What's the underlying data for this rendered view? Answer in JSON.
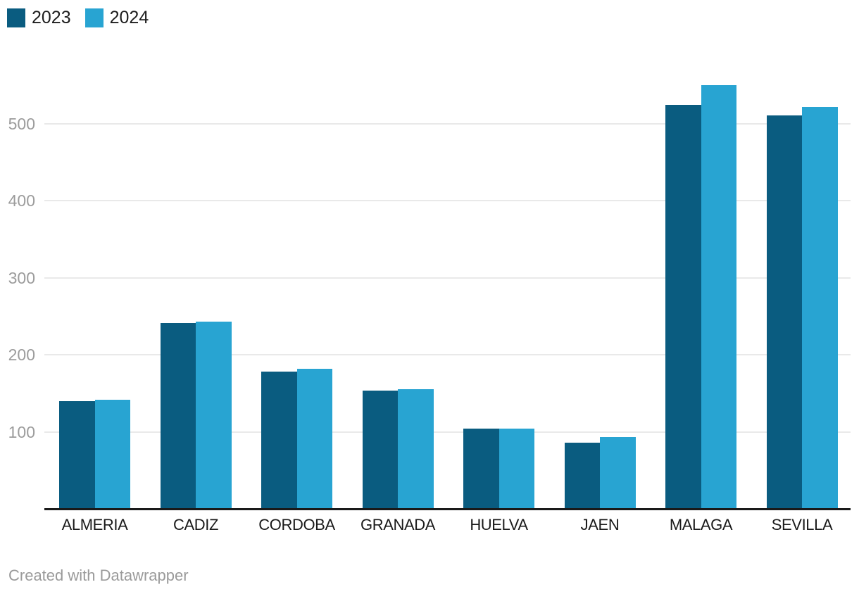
{
  "legend": {
    "items": [
      {
        "label": "2023",
        "color": "#0a5c80"
      },
      {
        "label": "2024",
        "color": "#28a4d2"
      }
    ]
  },
  "chart_data": {
    "type": "bar",
    "categories": [
      "ALMERIA",
      "CADIZ",
      "CORDOBA",
      "GRANADA",
      "HUELVA",
      "JAEN",
      "MALAGA",
      "SEVILLA"
    ],
    "series": [
      {
        "name": "2023",
        "color": "#0a5c80",
        "values": [
          140,
          241,
          178,
          154,
          104,
          86,
          525,
          511
        ]
      },
      {
        "name": "2024",
        "color": "#28a4d2",
        "values": [
          142,
          243,
          182,
          155,
          104,
          93,
          550,
          522
        ]
      }
    ],
    "title": "",
    "xlabel": "",
    "ylabel": "",
    "yticks": [
      100,
      200,
      300,
      400,
      500
    ],
    "ylim": [
      0,
      560
    ],
    "grid": true,
    "legend_position": "top-left",
    "axis_text_color": "#9c9c9c",
    "category_text_color": "#1a1a1a",
    "gridline_color": "#e9e9e9",
    "axisline_color": "#1a1a1a"
  },
  "footer": {
    "text": "Created with Datawrapper"
  }
}
